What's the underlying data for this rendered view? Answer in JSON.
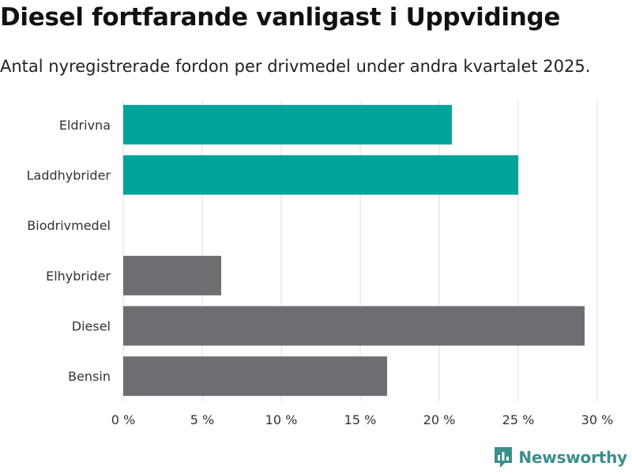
{
  "header": {
    "title": "Diesel fortfarande vanligast i Uppvidinge",
    "subtitle": "Antal nyregistrerade fordon per drivmedel under andra kvartalet 2025."
  },
  "brand": {
    "name": "Newsworthy",
    "logo_icon": "bar-chart-pin-icon",
    "color": "#3a8f8a"
  },
  "chart_data": {
    "type": "bar",
    "orientation": "horizontal",
    "categories": [
      "Eldrivna",
      "Laddhybrider",
      "Biodrivmedel",
      "Elhybrider",
      "Diesel",
      "Bensin"
    ],
    "values": [
      20.8,
      25.0,
      0,
      6.2,
      29.2,
      16.7
    ],
    "colors": [
      "#00a39a",
      "#00a39a",
      "#00a39a",
      "#6e6d72",
      "#6e6d72",
      "#6e6d72"
    ],
    "xlim": [
      0,
      30
    ],
    "xticks": [
      {
        "value": 0,
        "label": "0 %"
      },
      {
        "value": 5,
        "label": "5 %"
      },
      {
        "value": 10,
        "label": "10 %"
      },
      {
        "value": 15,
        "label": "15 %"
      },
      {
        "value": 20,
        "label": "20 %"
      },
      {
        "value": 25,
        "label": "25 %"
      },
      {
        "value": 30,
        "label": "30 %"
      }
    ],
    "grid": true
  }
}
